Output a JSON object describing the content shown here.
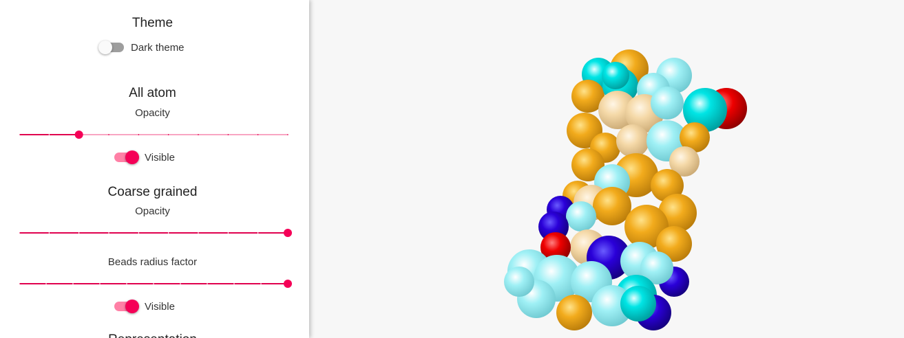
{
  "theme": {
    "title": "Theme",
    "toggle": {
      "label": "Dark theme",
      "checked": false
    }
  },
  "all_atom": {
    "title": "All atom",
    "opacity": {
      "label": "Opacity",
      "value": 0.3,
      "min": 0.1,
      "max": 1,
      "step": 0.1
    },
    "visible": {
      "label": "Visible",
      "checked": true
    }
  },
  "coarse_grained": {
    "title": "Coarse grained",
    "opacity": {
      "label": "Opacity",
      "value": 1,
      "min": 0.1,
      "max": 1,
      "step": 0.1
    },
    "beads_radius": {
      "label": "Beads radius factor",
      "value": 1,
      "min": 0,
      "max": 1,
      "step": 0.1
    },
    "visible": {
      "label": "Visible",
      "checked": true
    }
  },
  "representation": {
    "title": "Representation"
  }
}
